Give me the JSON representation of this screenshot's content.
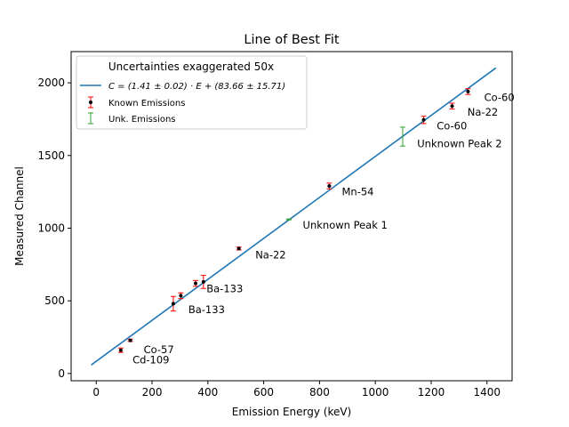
{
  "chart_data": {
    "type": "scatter",
    "title": "Line of Best Fit",
    "xlabel": "Emission Energy (keV)",
    "ylabel": "Measured Channel",
    "xlim": [
      -90,
      1490
    ],
    "ylim": [
      -50,
      2215
    ],
    "xticks": [
      0,
      200,
      400,
      600,
      800,
      1000,
      1200,
      1400
    ],
    "yticks": [
      0,
      500,
      1000,
      1500,
      2000
    ],
    "grid": false,
    "legend": {
      "title": "Uncertainties exaggerated 50x",
      "position": "top-left",
      "entries": [
        {
          "key": "fit",
          "label": "C = (1.41 ± 0.02) · E + (83.66 ± 15.71)"
        },
        {
          "key": "known",
          "label": "Known Emissions"
        },
        {
          "key": "unknown",
          "label": "Unk. Emissions"
        }
      ]
    },
    "fit_line": {
      "slope": 1.41,
      "intercept": 83.66,
      "x_range": [
        -18,
        1432
      ],
      "color": "#1f77b4"
    },
    "series": [
      {
        "key": "known",
        "color": "#000000",
        "errcolor": "#ff0000",
        "points": [
          {
            "x": 88,
            "y": 160,
            "err": 15,
            "label": "Cd-109",
            "lx": 130,
            "ly": 95
          },
          {
            "x": 122,
            "y": 228,
            "err": 8,
            "label": "Co-57",
            "lx": 170,
            "ly": 165
          },
          {
            "x": 276,
            "y": 480,
            "err": 50,
            "label": "Ba-133",
            "lx": 330,
            "ly": 440
          },
          {
            "x": 303,
            "y": 535,
            "err": 20,
            "label": "",
            "lx": 0,
            "ly": 0
          },
          {
            "x": 356,
            "y": 620,
            "err": 20,
            "label": "",
            "lx": 0,
            "ly": 0
          },
          {
            "x": 384,
            "y": 630,
            "err": 45,
            "label": "Ba-133",
            "lx": 395,
            "ly": 585
          },
          {
            "x": 511,
            "y": 860,
            "err": 10,
            "label": "Na-22",
            "lx": 570,
            "ly": 815
          },
          {
            "x": 835,
            "y": 1290,
            "err": 20,
            "label": "Mn-54",
            "lx": 880,
            "ly": 1250
          },
          {
            "x": 1173,
            "y": 1745,
            "err": 25,
            "label": "Co-60",
            "lx": 1220,
            "ly": 1705
          },
          {
            "x": 1275,
            "y": 1840,
            "err": 20,
            "label": "Na-22",
            "lx": 1330,
            "ly": 1800
          },
          {
            "x": 1332,
            "y": 1940,
            "err": 20,
            "label": "Co-60",
            "lx": 1390,
            "ly": 1900
          }
        ]
      },
      {
        "key": "unknown",
        "color": "#2ca02c",
        "errcolor": "#2ca02c",
        "points": [
          {
            "x": 690,
            "y": 1060,
            "err": 3,
            "label": "Unknown Peak 1",
            "lx": 740,
            "ly": 1020
          },
          {
            "x": 1098,
            "y": 1630,
            "err": 65,
            "label": "Unknown Peak 2",
            "lx": 1150,
            "ly": 1580
          }
        ]
      }
    ]
  }
}
